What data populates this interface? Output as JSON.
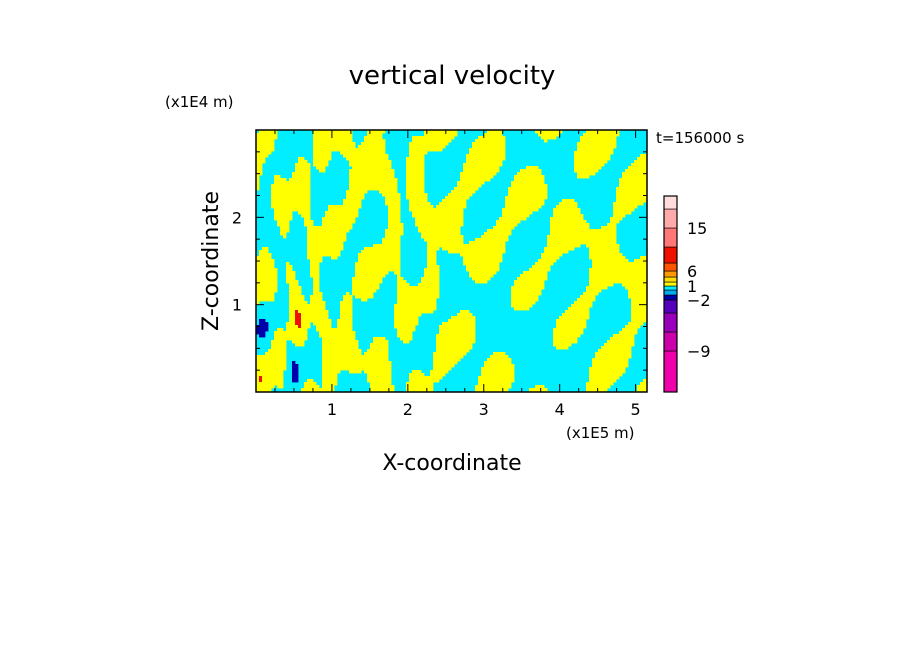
{
  "chart_data": {
    "type": "heatmap",
    "title": "vertical velocity",
    "xlabel": "X-coordinate",
    "ylabel": "Z-coordinate",
    "x_unit": "(x1E5 m)",
    "y_unit": "(x1E4 m)",
    "time_label": "t=156000 s",
    "x_ticks": [
      1,
      2,
      3,
      4,
      5
    ],
    "y_ticks": [
      1,
      2
    ],
    "xlim": [
      0,
      5.15
    ],
    "ylim": [
      0,
      3.0
    ],
    "colorbar": {
      "levels": [
        -12,
        -9,
        -6,
        -4,
        -2,
        -1,
        0,
        1,
        2,
        4,
        6,
        9,
        12,
        15,
        18,
        25
      ],
      "colors": [
        "#ee00aa",
        "#cc00aa",
        "#9900bb",
        "#5500bb",
        "#0000aa",
        "#00aaee",
        "#00eeff",
        "#ffff00",
        "#ffdd00",
        "#ff9900",
        "#ff5500",
        "#ee1100",
        "#ff7777",
        "#ffaaaa",
        "#ffdddd"
      ],
      "tick_labels": [
        {
          "value": -9,
          "label": "−9"
        },
        {
          "value": -2,
          "label": "−2"
        },
        {
          "value": 1,
          "label": "1"
        },
        {
          "value": 6,
          "label": "6"
        },
        {
          "value": 15,
          "label": "15"
        }
      ]
    },
    "field_colors": {
      "negative": "#00eeff",
      "positive": "#ffff00",
      "strong_negative": "#0000aa",
      "strong_positive": "#ee1100"
    }
  }
}
